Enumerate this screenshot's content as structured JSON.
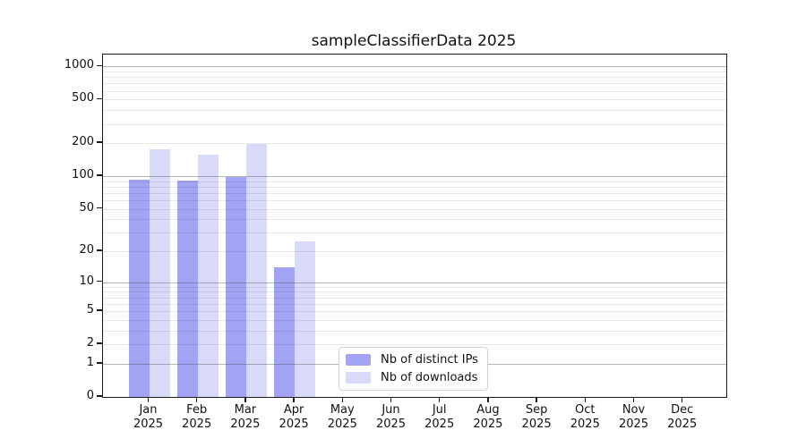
{
  "chart_data": {
    "type": "bar",
    "title": "sampleClassifierData 2025",
    "categories": [
      "Jan",
      "Feb",
      "Mar",
      "Apr",
      "May",
      "Jun",
      "Jul",
      "Aug",
      "Sep",
      "Oct",
      "Nov",
      "Dec"
    ],
    "year_label": "2025",
    "series": [
      {
        "name": "Nb of distinct IPs",
        "color": "#a3a3f3",
        "values": [
          93,
          91,
          98,
          14,
          0,
          0,
          0,
          0,
          0,
          0,
          0,
          0
        ]
      },
      {
        "name": "Nb of downloads",
        "color": "#d9d9f9",
        "values": [
          176,
          158,
          196,
          25,
          0,
          0,
          0,
          0,
          0,
          0,
          0,
          0
        ]
      }
    ],
    "y_ticks": [
      1000,
      500,
      200,
      100,
      50,
      20,
      10,
      5,
      2,
      1,
      0
    ],
    "y_scale": "log10(1+y)",
    "ylim": [
      0,
      1283
    ],
    "grid": "horizontal; faint minor lines at 2-9 of each decade, gray major lines at 1, 10, 100, 1000",
    "legend_position": "inside-bottom-center",
    "colors": {
      "distinct_ips_bar": "#a3a3f3",
      "downloads_bar": "#d9d9f9",
      "major_grid": "#b3b3b3",
      "minor_grid": "#ebebeb",
      "axis_spine": "#1a1a1a",
      "background": "#ffffff"
    }
  }
}
